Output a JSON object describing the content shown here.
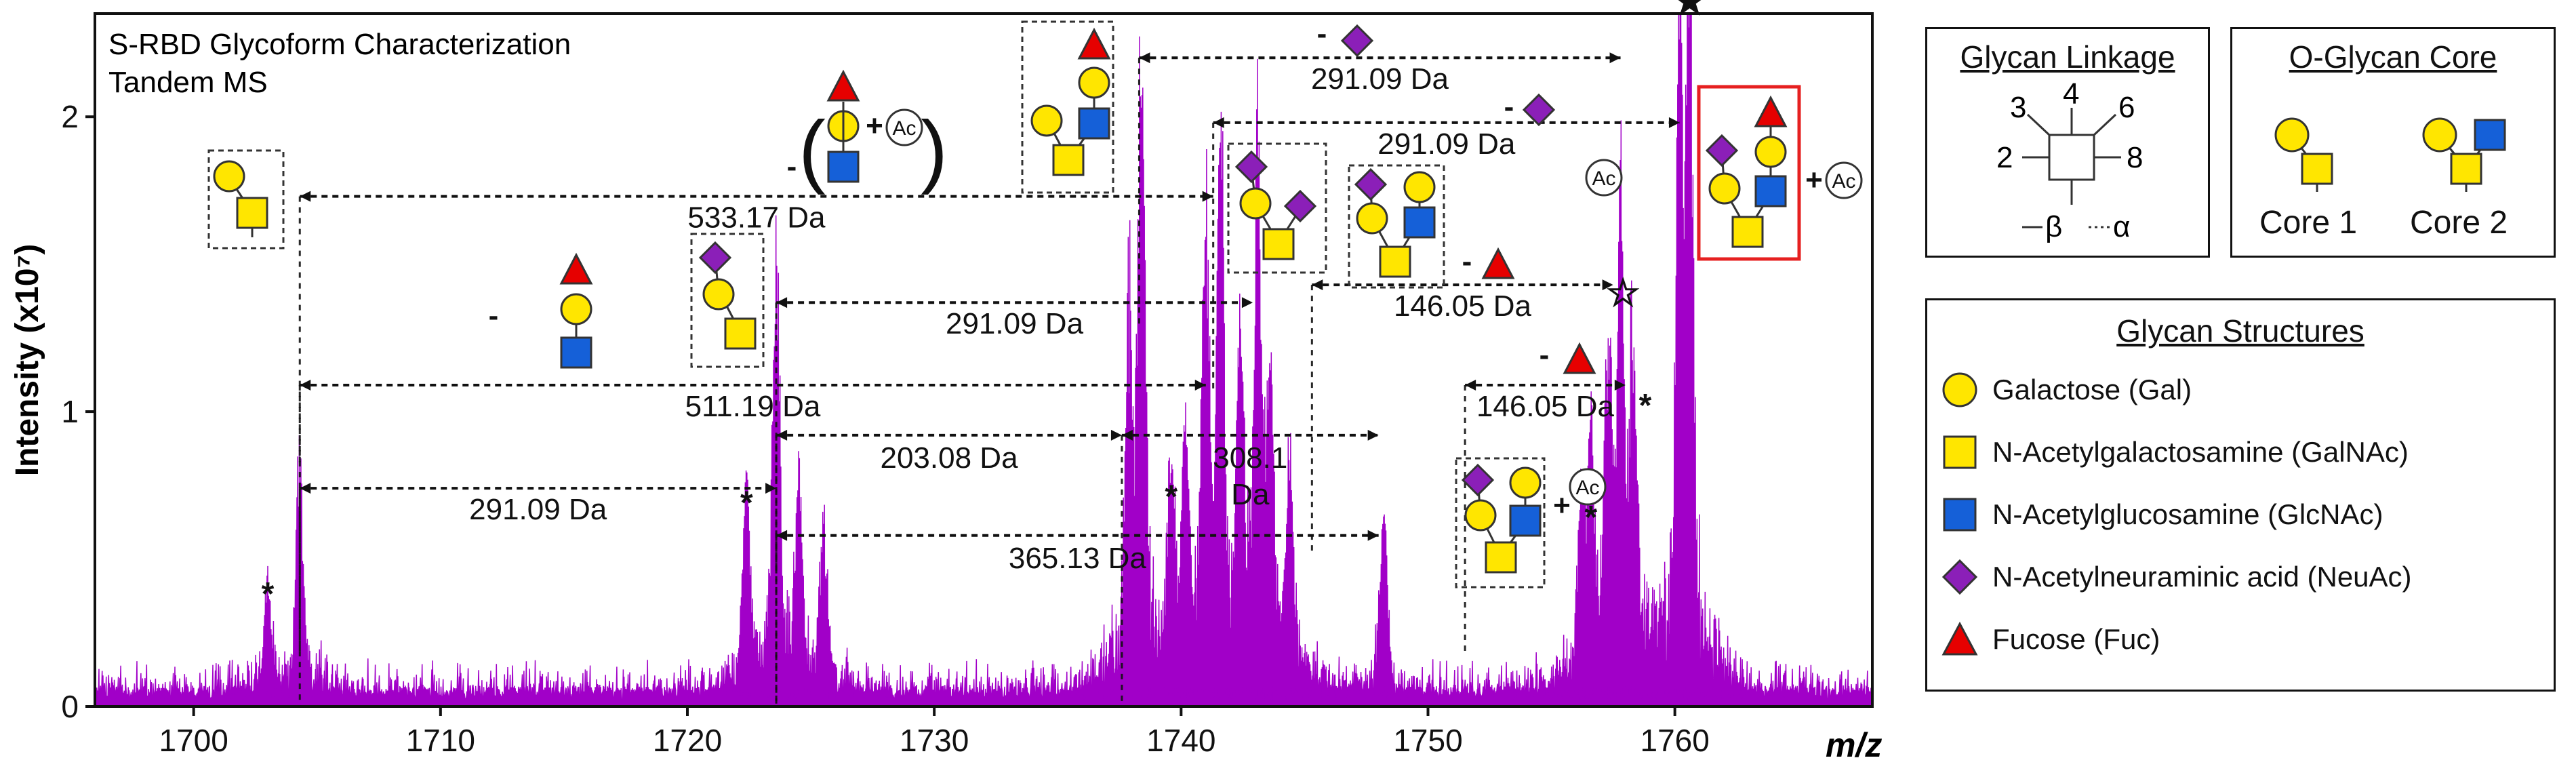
{
  "colors": {
    "spectrum": "#a100c8",
    "gal": "#ffe600",
    "galnac": "#ffe600",
    "glcnac": "#1560d8",
    "neuac": "#8b1fb8",
    "fuc": "#e60000",
    "box_red": "#e62020"
  },
  "chart_data": {
    "type": "line",
    "title": "S-RBD Glycoform Characterization",
    "subtitle": "Tandem MS",
    "xlabel": "m/z",
    "ylabel": "Intensity (x10⁷)",
    "xlim": [
      1696,
      1768
    ],
    "ylim": [
      0,
      2.35
    ],
    "xticks": [
      1700,
      1710,
      1720,
      1730,
      1740,
      1750,
      1760
    ],
    "yticks": [
      0,
      1,
      2
    ],
    "noise_floor": 0.12,
    "peaks": [
      {
        "mz": 1703.0,
        "intensity": 0.32
      },
      {
        "mz": 1704.3,
        "intensity": 0.75
      },
      {
        "mz": 1722.4,
        "intensity": 0.63
      },
      {
        "mz": 1723.6,
        "intensity": 1.33
      },
      {
        "mz": 1724.5,
        "intensity": 0.55
      },
      {
        "mz": 1725.5,
        "intensity": 0.45
      },
      {
        "mz": 1737.9,
        "intensity": 1.05
      },
      {
        "mz": 1738.4,
        "intensity": 1.93
      },
      {
        "mz": 1739.6,
        "intensity": 0.55
      },
      {
        "mz": 1740.2,
        "intensity": 0.65
      },
      {
        "mz": 1741.0,
        "intensity": 1.35
      },
      {
        "mz": 1741.6,
        "intensity": 1.55
      },
      {
        "mz": 1742.4,
        "intensity": 0.95
      },
      {
        "mz": 1743.1,
        "intensity": 1.52
      },
      {
        "mz": 1743.6,
        "intensity": 0.9
      },
      {
        "mz": 1744.4,
        "intensity": 0.6
      },
      {
        "mz": 1748.2,
        "intensity": 0.55
      },
      {
        "mz": 1756.2,
        "intensity": 0.55
      },
      {
        "mz": 1756.6,
        "intensity": 0.64
      },
      {
        "mz": 1757.3,
        "intensity": 0.95
      },
      {
        "mz": 1757.8,
        "intensity": 1.33
      },
      {
        "mz": 1758.3,
        "intensity": 0.9
      },
      {
        "mz": 1760.2,
        "intensity": 1.85
      },
      {
        "mz": 1760.6,
        "intensity": 2.3
      }
    ],
    "peak_markers": [
      {
        "mz": 1703.0,
        "intensity": 0.34,
        "symbol": "*"
      },
      {
        "mz": 1722.4,
        "intensity": 0.65,
        "symbol": "*"
      },
      {
        "mz": 1739.6,
        "intensity": 0.67,
        "symbol": "*"
      },
      {
        "mz": 1756.6,
        "intensity": 0.6,
        "symbol": "*"
      },
      {
        "mz": 1758.8,
        "intensity": 0.98,
        "symbol": "*"
      },
      {
        "mz": 1757.9,
        "intensity": 1.34,
        "symbol": "☆"
      },
      {
        "mz": 1760.6,
        "intensity": 2.33,
        "symbol": "★"
      }
    ],
    "mass_differences": [
      {
        "label": "533.17 Da",
        "from": 1704.3,
        "to": 1741.3,
        "y": 1.73
      },
      {
        "label": "291.09 Da",
        "from": 1738.3,
        "to": 1757.8,
        "y": 2.2
      },
      {
        "label": "291.09 Da",
        "from": 1741.3,
        "to": 1760.2,
        "y": 1.98
      },
      {
        "label": "291.09 Da",
        "from": 1723.6,
        "to": 1742.9,
        "y": 1.37
      },
      {
        "label": "511.19 Da",
        "from": 1704.3,
        "to": 1741.0,
        "y": 1.09
      },
      {
        "label": "291.09 Da",
        "from": 1704.3,
        "to": 1723.6,
        "y": 0.74
      },
      {
        "label": "203.08 Da",
        "from": 1723.6,
        "to": 1737.6,
        "y": 0.92
      },
      {
        "label": "308.1 Da",
        "from": 1737.6,
        "to": 1748.0,
        "y": 0.92
      },
      {
        "label": "365.13 Da",
        "from": 1723.6,
        "to": 1748.0,
        "y": 0.58
      },
      {
        "label": "146.05 Da",
        "from": 1745.3,
        "to": 1757.5,
        "y": 1.43
      },
      {
        "label": "146.05 Da",
        "from": 1751.5,
        "to": 1758.0,
        "y": 1.09
      }
    ],
    "ac_label": "Ac",
    "plus_label": "+",
    "minus_label": "-"
  },
  "legend": {
    "linkage": {
      "title": "Glycan Linkage",
      "positions": [
        "3",
        "4",
        "6",
        "2",
        "8"
      ],
      "beta_label": "β",
      "alpha_label": "α"
    },
    "core": {
      "title": "O-Glycan Core",
      "core1": "Core 1",
      "core2": "Core 2"
    },
    "structures": {
      "title": "Glycan Structures",
      "items": [
        {
          "shape": "circle",
          "label": "Galactose (Gal)"
        },
        {
          "shape": "square-yellow",
          "label": "N-Acetylgalactosamine (GalNAc)"
        },
        {
          "shape": "square-blue",
          "label": "N-Acetylglucosamine (GlcNAc)"
        },
        {
          "shape": "diamond",
          "label": "N-Acetylneuraminic acid (NeuAc)"
        },
        {
          "shape": "triangle",
          "label": "Fucose (Fuc)"
        }
      ]
    }
  }
}
